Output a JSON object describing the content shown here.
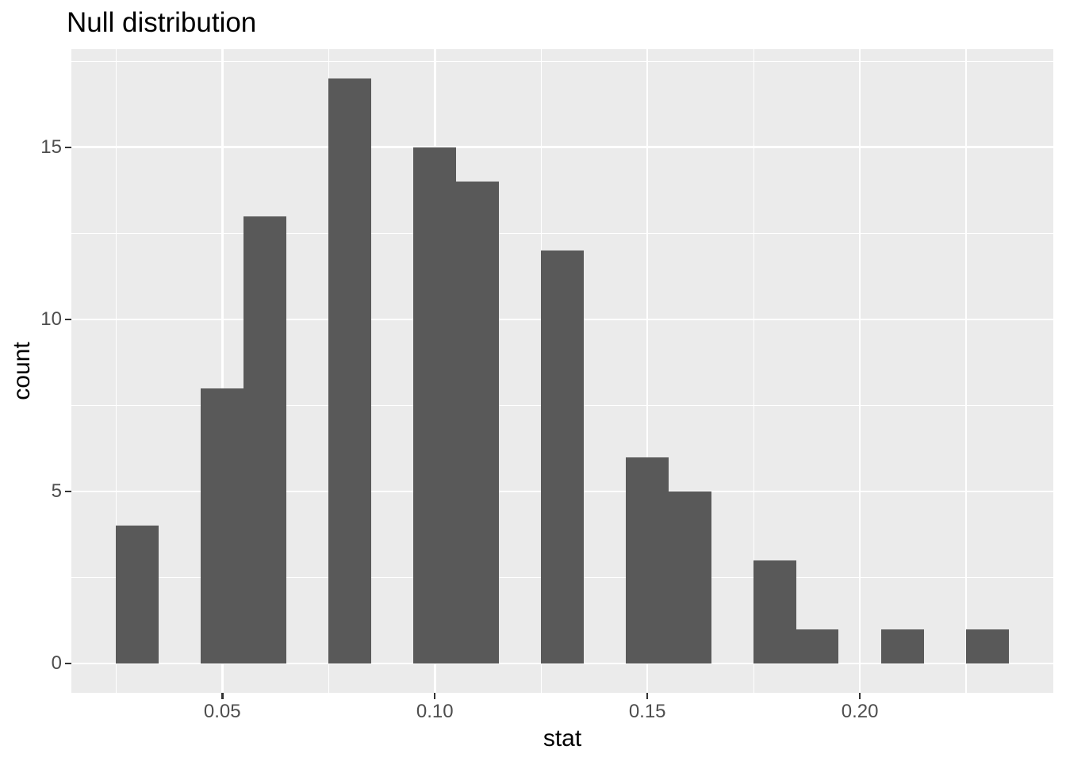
{
  "chart_data": {
    "type": "bar",
    "subtype": "histogram",
    "title": "Null distribution",
    "xlabel": "stat",
    "ylabel": "count",
    "binwidth": 0.01,
    "bins": [
      {
        "center": 0.03,
        "count": 4
      },
      {
        "center": 0.05,
        "count": 8
      },
      {
        "center": 0.06,
        "count": 13
      },
      {
        "center": 0.08,
        "count": 17
      },
      {
        "center": 0.1,
        "count": 15
      },
      {
        "center": 0.11,
        "count": 14
      },
      {
        "center": 0.13,
        "count": 12
      },
      {
        "center": 0.15,
        "count": 6
      },
      {
        "center": 0.16,
        "count": 5
      },
      {
        "center": 0.18,
        "count": 3
      },
      {
        "center": 0.19,
        "count": 1
      },
      {
        "center": 0.21,
        "count": 1
      },
      {
        "center": 0.23,
        "count": 1
      }
    ],
    "xlim": [
      0.0145,
      0.2455
    ],
    "ylim": [
      -0.85,
      17.85
    ],
    "x_ticks": [
      {
        "value": 0.05,
        "label": "0.05"
      },
      {
        "value": 0.1,
        "label": "0.10"
      },
      {
        "value": 0.15,
        "label": "0.15"
      },
      {
        "value": 0.2,
        "label": "0.20"
      }
    ],
    "y_ticks": [
      {
        "value": 0,
        "label": "0"
      },
      {
        "value": 5,
        "label": "5"
      },
      {
        "value": 10,
        "label": "10"
      },
      {
        "value": 15,
        "label": "15"
      }
    ],
    "x_minor_gridlines": [
      0.025,
      0.075,
      0.125,
      0.175,
      0.225
    ],
    "y_minor_gridlines": [
      2.5,
      7.5,
      12.5,
      17.5
    ],
    "grid": "on",
    "legend": "none",
    "colors": {
      "bar_fill": "#595959",
      "panel_background": "#EBEBEB",
      "gridline": "#FFFFFF",
      "tick_label": "#4D4D4D",
      "tick_mark": "#333333",
      "title_text": "#000000",
      "page_background": "#FFFFFF"
    }
  }
}
